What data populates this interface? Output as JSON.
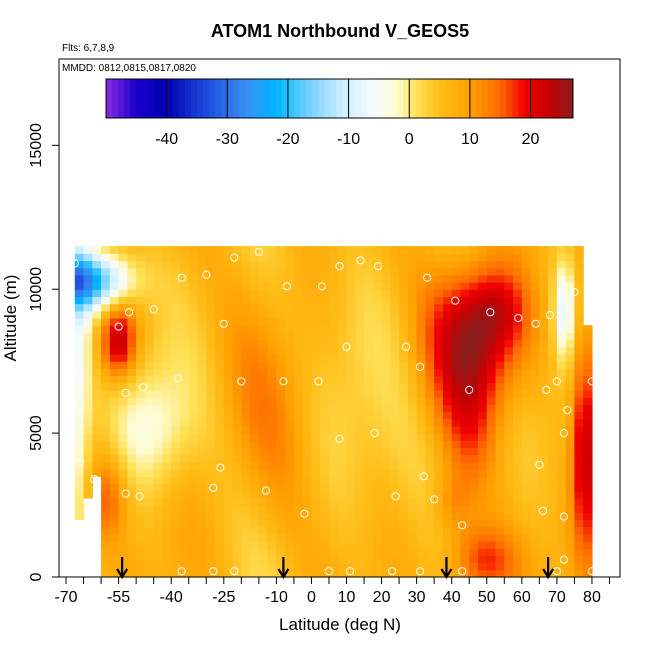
{
  "chart_data": {
    "type": "heatmap",
    "title": "ATOM1 Northbound V_GEOS5",
    "subtitle_flights": "Flts: 6,7,8,9",
    "subtitle_dates": "MMDD: 0812,0815,0817,0820",
    "xlabel": "Latitude (deg N)",
    "ylabel": "Altitude (m)",
    "xlim": [
      -72,
      88
    ],
    "ylim": [
      0,
      18000
    ],
    "x_ticks": [
      -70,
      -55,
      -40,
      -25,
      -10,
      0,
      10,
      20,
      30,
      40,
      50,
      60,
      70,
      80
    ],
    "x_tick_labels": [
      "-70",
      "-55",
      "-40",
      "-25",
      "-10",
      "0",
      "10",
      "20",
      "30",
      "40",
      "50",
      "60",
      "70",
      "80"
    ],
    "x_minor_ticks": [
      -65,
      -60,
      -50,
      -45,
      -35,
      -30,
      -20,
      -15,
      -5,
      5,
      15,
      25,
      35,
      45,
      55,
      65,
      75,
      85
    ],
    "y_ticks": [
      0,
      5000,
      10000,
      15000
    ],
    "y_tick_labels": [
      "0",
      "5000",
      "10000",
      "15000"
    ],
    "colorbar": {
      "range": [
        -50,
        27
      ],
      "tick_values": [
        -40,
        -30,
        -20,
        -10,
        0,
        10,
        20
      ],
      "tick_labels": [
        "-40",
        "-30",
        "-20",
        "-10",
        "0",
        "10",
        "20"
      ],
      "stops": [
        {
          "v": -50,
          "c": "#8a2be2"
        },
        {
          "v": -45,
          "c": "#1a00cc"
        },
        {
          "v": -40,
          "c": "#0000b0"
        },
        {
          "v": -33,
          "c": "#1f4fe0"
        },
        {
          "v": -27,
          "c": "#3a8ef0"
        },
        {
          "v": -22,
          "c": "#00b5ff"
        },
        {
          "v": -16,
          "c": "#7fd3ff"
        },
        {
          "v": -11,
          "c": "#cceeff"
        },
        {
          "v": -6,
          "c": "#f4fbff"
        },
        {
          "v": -2,
          "c": "#fffbd0"
        },
        {
          "v": 1,
          "c": "#ffe25a"
        },
        {
          "v": 5,
          "c": "#ffbf1a"
        },
        {
          "v": 10,
          "c": "#ffa000"
        },
        {
          "v": 15,
          "c": "#ff6a00"
        },
        {
          "v": 19,
          "c": "#f00000"
        },
        {
          "v": 23,
          "c": "#c80000"
        },
        {
          "v": 27,
          "c": "#8a1b1b"
        }
      ]
    },
    "data_region": {
      "lat_min": -67.5,
      "lat_max": 80,
      "alt_min": 0,
      "alt_max": 11500,
      "grid_step_lat": 2.5,
      "grid_step_alt": 250
    },
    "anomalies": [
      {
        "lat": 47,
        "alt": 8500,
        "sx": 10,
        "sy": 1800,
        "amp": 16
      },
      {
        "lat": 53,
        "alt": 9300,
        "sx": 6,
        "sy": 900,
        "amp": 6
      },
      {
        "lat": -55,
        "alt": 8200,
        "sx": 3.5,
        "sy": 900,
        "amp": 18
      },
      {
        "lat": -65,
        "alt": 10300,
        "sx": 9,
        "sy": 700,
        "amp": -30
      },
      {
        "lat": -67,
        "alt": 6500,
        "sx": 3,
        "sy": 3500,
        "amp": -14
      },
      {
        "lat": -45,
        "alt": 5200,
        "sx": 8,
        "sy": 1500,
        "amp": -8
      },
      {
        "lat": -58,
        "alt": 2800,
        "sx": 4,
        "sy": 1000,
        "amp": 9
      },
      {
        "lat": 48,
        "alt": 500,
        "sx": 7,
        "sy": 900,
        "amp": 13
      },
      {
        "lat": 40,
        "alt": 2500,
        "sx": 4,
        "sy": 800,
        "amp": 6
      },
      {
        "lat": 78,
        "alt": 5000,
        "sx": 2.5,
        "sy": 2800,
        "amp": 17
      },
      {
        "lat": 72,
        "alt": 9300,
        "sx": 2,
        "sy": 1200,
        "amp": -12
      },
      {
        "lat": 45,
        "alt": 5500,
        "sx": 6,
        "sy": 2000,
        "amp": 7
      },
      {
        "lat": -10,
        "alt": 5000,
        "sx": 10,
        "sy": 3000,
        "amp": 4
      },
      {
        "lat": 10,
        "alt": 6000,
        "sx": 10,
        "sy": 4000,
        "amp": -2
      },
      {
        "lat": 25,
        "alt": 3500,
        "sx": 8,
        "sy": 2000,
        "amp": -2
      }
    ],
    "observation_points": [
      {
        "lat": -67.5,
        "alt": 10900
      },
      {
        "lat": -52,
        "alt": 9200
      },
      {
        "lat": -45,
        "alt": 9300
      },
      {
        "lat": -37,
        "alt": 10400
      },
      {
        "lat": -30,
        "alt": 10500
      },
      {
        "lat": -22,
        "alt": 11100
      },
      {
        "lat": -15,
        "alt": 11300
      },
      {
        "lat": -7,
        "alt": 10100
      },
      {
        "lat": 3,
        "alt": 10100
      },
      {
        "lat": 8,
        "alt": 10800
      },
      {
        "lat": 14,
        "alt": 11000
      },
      {
        "lat": 19,
        "alt": 10800
      },
      {
        "lat": 33,
        "alt": 10400
      },
      {
        "lat": 41,
        "alt": 9600
      },
      {
        "lat": 51,
        "alt": 9200
      },
      {
        "lat": 59,
        "alt": 9000
      },
      {
        "lat": 64,
        "alt": 8800
      },
      {
        "lat": 68,
        "alt": 9100
      },
      {
        "lat": 75,
        "alt": 9900
      },
      {
        "lat": -55,
        "alt": 8700
      },
      {
        "lat": -25,
        "alt": 8800
      },
      {
        "lat": 10,
        "alt": 8000
      },
      {
        "lat": 27,
        "alt": 8000
      },
      {
        "lat": 31,
        "alt": 7300
      },
      {
        "lat": -68,
        "alt": 7000
      },
      {
        "lat": -38,
        "alt": 6900
      },
      {
        "lat": -20,
        "alt": 6800
      },
      {
        "lat": -8,
        "alt": 6800
      },
      {
        "lat": 2,
        "alt": 6800
      },
      {
        "lat": 70,
        "alt": 6800
      },
      {
        "lat": 80,
        "alt": 6800
      },
      {
        "lat": -53,
        "alt": 6400
      },
      {
        "lat": -48,
        "alt": 6600
      },
      {
        "lat": 45,
        "alt": 6500
      },
      {
        "lat": 67,
        "alt": 6500
      },
      {
        "lat": 73,
        "alt": 5800
      },
      {
        "lat": 72,
        "alt": 5000
      },
      {
        "lat": 8,
        "alt": 4800
      },
      {
        "lat": 18,
        "alt": 5000
      },
      {
        "lat": -66,
        "alt": 4000
      },
      {
        "lat": -26,
        "alt": 3800
      },
      {
        "lat": 65,
        "alt": 3900
      },
      {
        "lat": -62,
        "alt": 3400
      },
      {
        "lat": 32,
        "alt": 3500
      },
      {
        "lat": -53,
        "alt": 2900
      },
      {
        "lat": -49,
        "alt": 2800
      },
      {
        "lat": -28,
        "alt": 3100
      },
      {
        "lat": -13,
        "alt": 3000
      },
      {
        "lat": -2,
        "alt": 2200
      },
      {
        "lat": 24,
        "alt": 2800
      },
      {
        "lat": 35,
        "alt": 2700
      },
      {
        "lat": 66,
        "alt": 2300
      },
      {
        "lat": 72,
        "alt": 2100
      },
      {
        "lat": 43,
        "alt": 1800
      },
      {
        "lat": 72,
        "alt": 600
      },
      {
        "lat": -37,
        "alt": 200
      },
      {
        "lat": -28,
        "alt": 200
      },
      {
        "lat": -22,
        "alt": 200
      },
      {
        "lat": 5,
        "alt": 200
      },
      {
        "lat": 11,
        "alt": 200
      },
      {
        "lat": 23,
        "alt": 200
      },
      {
        "lat": 31,
        "alt": 200
      },
      {
        "lat": 43,
        "alt": 200
      },
      {
        "lat": 70,
        "alt": 200
      },
      {
        "lat": 80,
        "alt": 200
      }
    ],
    "arrow_markers_lat": [
      -54,
      -8,
      38.5,
      67.5
    ]
  }
}
